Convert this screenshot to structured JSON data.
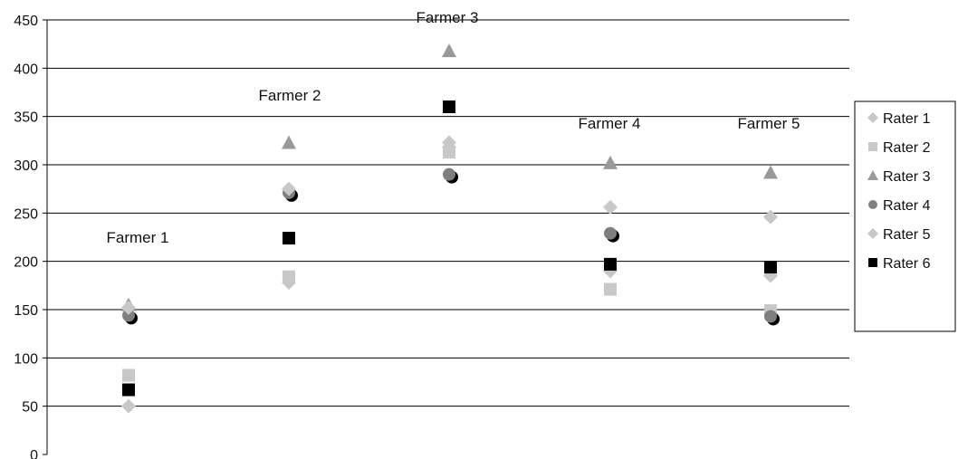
{
  "chart_data": {
    "type": "scatter",
    "title": "",
    "xlabel": "",
    "ylabel": "",
    "ylim": [
      0,
      450
    ],
    "yticks": [
      0,
      50,
      100,
      150,
      200,
      250,
      300,
      350,
      400,
      450
    ],
    "grid": true,
    "legend_position": "right",
    "categories": [
      "Farmer 1",
      "Farmer 2",
      "Farmer 3",
      "Farmer 4",
      "Farmer 5"
    ],
    "series": [
      {
        "name": "Rater 1",
        "marker": "diamond",
        "color": "#c8c8c8",
        "values": [
          50,
          178,
          318,
          190,
          185
        ]
      },
      {
        "name": "Rater 2",
        "marker": "square",
        "color": "#c8c8c8",
        "values": [
          82,
          184,
          313,
          171,
          149
        ]
      },
      {
        "name": "Rater 3",
        "marker": "triangle",
        "color": "#999999",
        "values": [
          155,
          323,
          418,
          302,
          292
        ]
      },
      {
        "name": "Rater 4",
        "marker": "circle",
        "color": "#7f7f7f",
        "values": [
          144,
          271,
          290,
          229,
          143
        ]
      },
      {
        "name": "Rater 5",
        "marker": "diamond",
        "color": "#c8c8c8",
        "values": [
          152,
          275,
          323,
          256,
          246
        ]
      },
      {
        "name": "Rater 6",
        "marker": "square",
        "color": "#000000",
        "values": [
          67,
          224,
          360,
          197,
          194
        ]
      }
    ]
  }
}
